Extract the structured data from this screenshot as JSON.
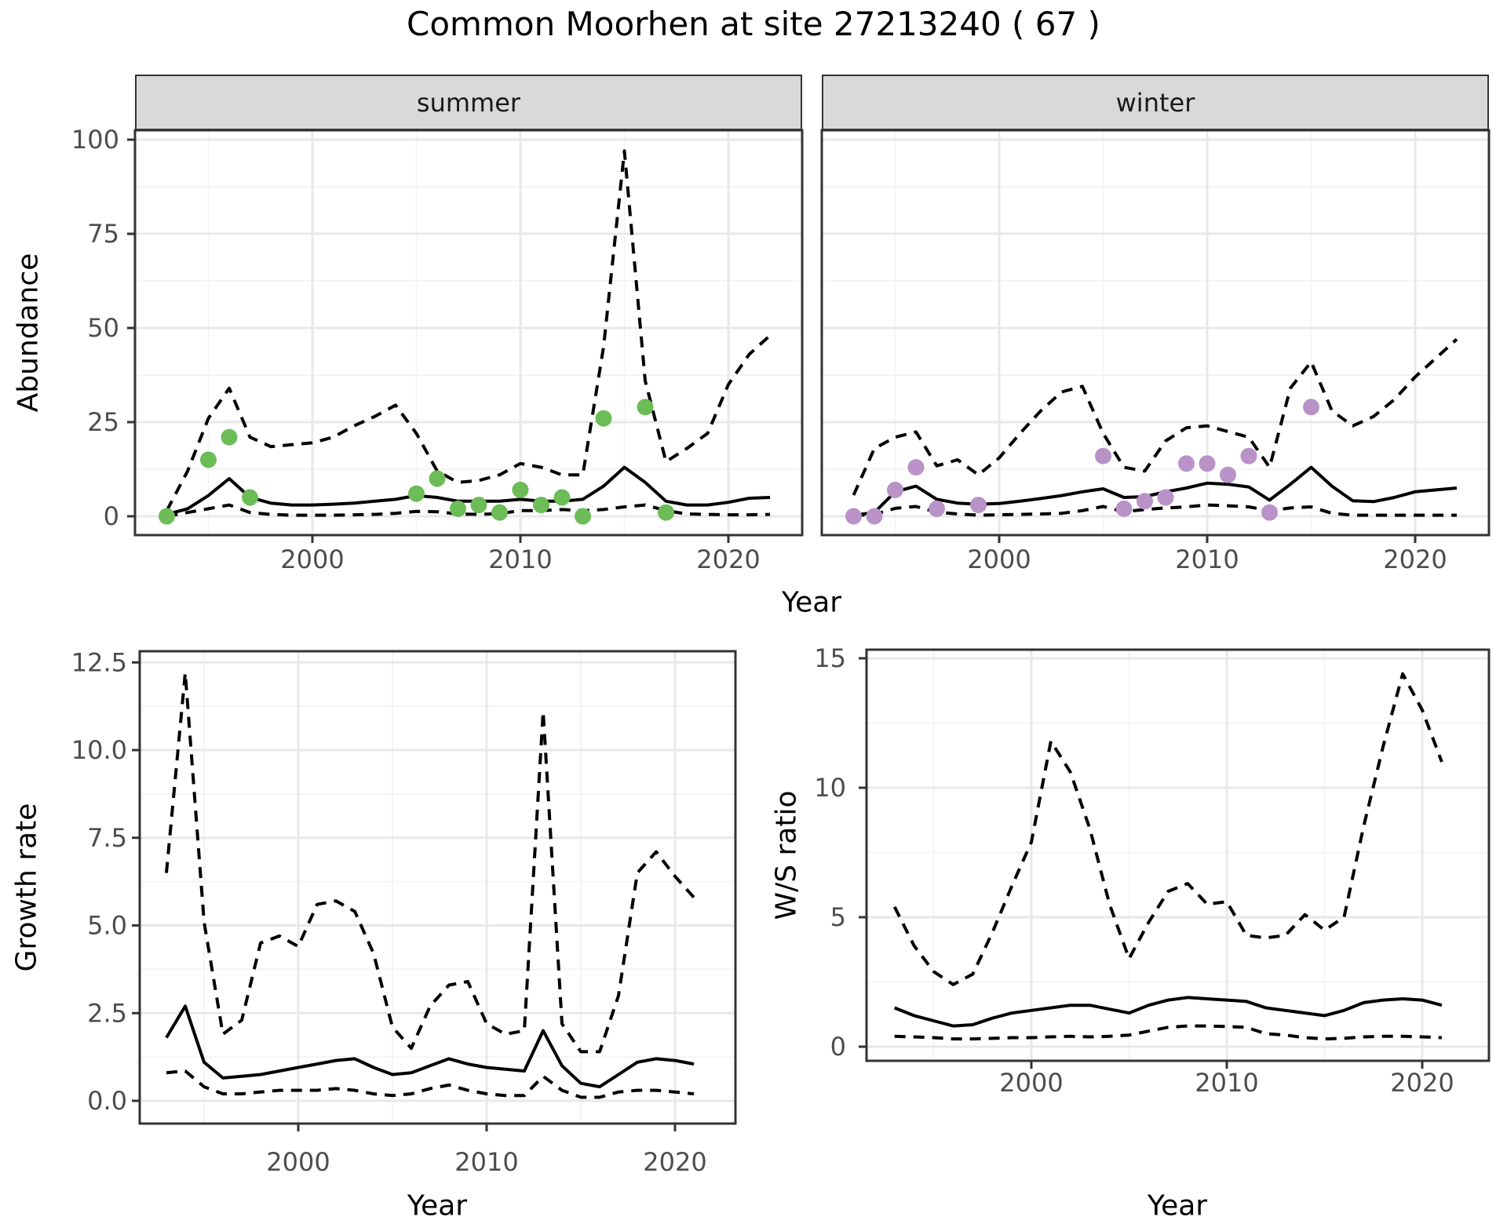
{
  "title": "Common Moorhen at site 27213240 ( 67 )",
  "colors": {
    "summer_point": "#6cbc58",
    "winter_point": "#b993c7",
    "line": "#000000",
    "strip_bg": "#d9d9d9",
    "grid_major": "#e8e8e8",
    "grid_minor": "#f4f4f4",
    "tick_text": "#4d4d4d",
    "panel_border": "#333333",
    "background": "#ffffff"
  },
  "chart_data": [
    {
      "id": "abundance-summer",
      "type": "line",
      "facet_label": "summer",
      "xlabel": "Year",
      "ylabel": "Abundance",
      "xlim": [
        1991.5,
        2023.5
      ],
      "ylim": [
        -5,
        102.5
      ],
      "grid": true,
      "legend_position": "none",
      "xticks": [
        {
          "v": 2000,
          "label": "2000"
        },
        {
          "v": 2010,
          "label": "2010"
        },
        {
          "v": 2020,
          "label": "2020"
        }
      ],
      "xminor": [
        1995,
        2005,
        2015
      ],
      "yticks": [
        {
          "v": 0,
          "label": "0"
        },
        {
          "v": 25,
          "label": "25"
        },
        {
          "v": 50,
          "label": "50"
        },
        {
          "v": 75,
          "label": "75"
        },
        {
          "v": 100,
          "label": "100"
        }
      ],
      "yminor": [
        12.5,
        37.5,
        62.5,
        87.5
      ],
      "x": [
        1993,
        1994,
        1995,
        1996,
        1997,
        1998,
        1999,
        2000,
        2001,
        2002,
        2003,
        2004,
        2005,
        2006,
        2007,
        2008,
        2009,
        2010,
        2011,
        2012,
        2013,
        2014,
        2015,
        2016,
        2017,
        2018,
        2019,
        2020,
        2021,
        2022
      ],
      "series": [
        {
          "name": "median",
          "style": "solid",
          "values": [
            0.5,
            2,
            5.5,
            10,
            5,
            3.5,
            3,
            3,
            3.2,
            3.5,
            4,
            4.5,
            5.5,
            5,
            4,
            4,
            4,
            4.5,
            4,
            4,
            4.5,
            8,
            13,
            9,
            4,
            3,
            3,
            3.7,
            4.8,
            5
          ]
        },
        {
          "name": "lower_ci",
          "style": "dashed",
          "values": [
            0,
            1,
            2,
            3,
            1,
            0.5,
            0.3,
            0.3,
            0.3,
            0.4,
            0.5,
            0.8,
            1.3,
            1.2,
            0.6,
            0.5,
            0.7,
            1.5,
            1.5,
            1.8,
            1.5,
            1.8,
            2.5,
            3,
            1.5,
            0.6,
            0.5,
            0.4,
            0.4,
            0.5
          ]
        },
        {
          "name": "upper_ci",
          "style": "dashed",
          "values": [
            1.5,
            12,
            26,
            34,
            21,
            18.5,
            19,
            19.5,
            21,
            24,
            26.5,
            29.5,
            22,
            12,
            9,
            9.5,
            11,
            14,
            13,
            11,
            11,
            45,
            97,
            36,
            14.5,
            18,
            22,
            35,
            43,
            48
          ]
        }
      ],
      "points": {
        "color_key": "summer_point",
        "data": [
          [
            1993,
            0
          ],
          [
            1995,
            15
          ],
          [
            1996,
            21
          ],
          [
            1997,
            5
          ],
          [
            2005,
            6
          ],
          [
            2006,
            10
          ],
          [
            2007,
            2
          ],
          [
            2008,
            3
          ],
          [
            2009,
            1
          ],
          [
            2010,
            7
          ],
          [
            2011,
            3
          ],
          [
            2012,
            5
          ],
          [
            2013,
            0
          ],
          [
            2014,
            26
          ],
          [
            2016,
            29
          ],
          [
            2017,
            1
          ]
        ]
      }
    },
    {
      "id": "abundance-winter",
      "type": "line",
      "facet_label": "winter",
      "xlabel": "Year",
      "ylabel": "Abundance",
      "xlim": [
        1991.5,
        2023.5
      ],
      "ylim": [
        -5,
        102.5
      ],
      "grid": true,
      "legend_position": "none",
      "xticks": [
        {
          "v": 2000,
          "label": "2000"
        },
        {
          "v": 2010,
          "label": "2010"
        },
        {
          "v": 2020,
          "label": "2020"
        }
      ],
      "xminor": [
        1995,
        2005,
        2015
      ],
      "yticks": [
        {
          "v": 0,
          "label": ""
        },
        {
          "v": 25,
          "label": ""
        },
        {
          "v": 50,
          "label": ""
        },
        {
          "v": 75,
          "label": ""
        },
        {
          "v": 100,
          "label": ""
        }
      ],
      "yminor": [
        12.5,
        37.5,
        62.5,
        87.5
      ],
      "x": [
        1993,
        1994,
        1995,
        1996,
        1997,
        1998,
        1999,
        2000,
        2001,
        2002,
        2003,
        2004,
        2005,
        2006,
        2007,
        2008,
        2009,
        2010,
        2011,
        2012,
        2013,
        2014,
        2015,
        2016,
        2017,
        2018,
        2019,
        2020,
        2021,
        2022
      ],
      "series": [
        {
          "name": "median",
          "style": "solid",
          "values": [
            0.3,
            1,
            6.5,
            8,
            4.5,
            3.5,
            3.2,
            3.4,
            4,
            4.7,
            5.5,
            6.5,
            7.3,
            5,
            5.2,
            6.5,
            7.5,
            8.8,
            8.5,
            7.8,
            4.3,
            8.5,
            13,
            8,
            4.1,
            3.9,
            5,
            6.5,
            7,
            7.5
          ]
        },
        {
          "name": "lower_ci",
          "style": "dashed",
          "values": [
            0.2,
            0.5,
            2.1,
            2.6,
            1.1,
            0.6,
            0.3,
            0.4,
            0.5,
            0.6,
            0.8,
            1.5,
            2.6,
            1.2,
            1.8,
            2.2,
            2.5,
            3,
            2.8,
            2.5,
            1.5,
            2.2,
            2.5,
            0.8,
            0.3,
            0.3,
            0.3,
            0.3,
            0.3,
            0.3
          ]
        },
        {
          "name": "upper_ci",
          "style": "dashed",
          "values": [
            5.6,
            18,
            21,
            22.4,
            13.4,
            15,
            11,
            15.5,
            22,
            28,
            33,
            34.5,
            22,
            13,
            12,
            20,
            23.5,
            24,
            22.5,
            21,
            13,
            34,
            41,
            28,
            24,
            26.5,
            31,
            37,
            42,
            47
          ]
        }
      ],
      "points": {
        "color_key": "winter_point",
        "data": [
          [
            1993,
            0
          ],
          [
            1994,
            0
          ],
          [
            1995,
            7
          ],
          [
            1996,
            13
          ],
          [
            1997,
            2
          ],
          [
            1999,
            3
          ],
          [
            2005,
            16
          ],
          [
            2006,
            2
          ],
          [
            2007,
            4
          ],
          [
            2008,
            5
          ],
          [
            2009,
            14
          ],
          [
            2010,
            14
          ],
          [
            2011,
            11
          ],
          [
            2012,
            16
          ],
          [
            2013,
            1
          ],
          [
            2015,
            29
          ]
        ]
      }
    },
    {
      "id": "growth-rate",
      "type": "line",
      "facet_label": "",
      "xlabel": "Year",
      "ylabel": "Growth rate",
      "xlim": [
        1991.6,
        2023.2
      ],
      "ylim": [
        -0.6,
        12.8
      ],
      "grid": true,
      "legend_position": "none",
      "xticks": [
        {
          "v": 2000,
          "label": "2000"
        },
        {
          "v": 2010,
          "label": "2010"
        },
        {
          "v": 2020,
          "label": "2020"
        }
      ],
      "xminor": [
        1995,
        2005,
        2015
      ],
      "yticks": [
        {
          "v": 0,
          "label": "0.0"
        },
        {
          "v": 2.5,
          "label": "2.5"
        },
        {
          "v": 5,
          "label": "5.0"
        },
        {
          "v": 7.5,
          "label": "7.5"
        },
        {
          "v": 10,
          "label": "10.0"
        },
        {
          "v": 12.5,
          "label": "12.5"
        }
      ],
      "yminor": [
        1.25,
        3.75,
        6.25,
        8.75,
        11.25
      ],
      "x": [
        1993,
        1994,
        1995,
        1996,
        1997,
        1998,
        1999,
        2000,
        2001,
        2002,
        2003,
        2004,
        2005,
        2006,
        2007,
        2008,
        2009,
        2010,
        2011,
        2012,
        2013,
        2014,
        2015,
        2016,
        2017,
        2018,
        2019,
        2020,
        2021
      ],
      "series": [
        {
          "name": "median",
          "style": "solid",
          "values": [
            1.8,
            2.7,
            1.1,
            0.65,
            0.7,
            0.75,
            0.85,
            0.95,
            1.05,
            1.15,
            1.2,
            0.95,
            0.75,
            0.8,
            1.0,
            1.2,
            1.05,
            0.95,
            0.9,
            0.85,
            2.0,
            1.0,
            0.5,
            0.4,
            0.75,
            1.1,
            1.2,
            1.15,
            1.05
          ]
        },
        {
          "name": "lower_ci",
          "style": "dashed",
          "values": [
            0.8,
            0.85,
            0.4,
            0.2,
            0.2,
            0.25,
            0.3,
            0.3,
            0.3,
            0.35,
            0.3,
            0.2,
            0.15,
            0.2,
            0.35,
            0.45,
            0.3,
            0.2,
            0.15,
            0.15,
            0.7,
            0.3,
            0.1,
            0.1,
            0.25,
            0.3,
            0.3,
            0.25,
            0.2
          ]
        },
        {
          "name": "upper_ci",
          "style": "dashed",
          "values": [
            6.5,
            12.2,
            5.1,
            1.9,
            2.3,
            4.5,
            4.7,
            4.4,
            5.6,
            5.7,
            5.4,
            4.2,
            2.1,
            1.5,
            2.7,
            3.3,
            3.4,
            2.2,
            1.9,
            2.0,
            11.1,
            2.2,
            1.4,
            1.4,
            3.0,
            6.5,
            7.1,
            6.4,
            5.8
          ]
        }
      ],
      "points": null
    },
    {
      "id": "ws-ratio",
      "type": "line",
      "facet_label": "",
      "xlabel": "Year",
      "ylabel": "W/S ratio",
      "xlim": [
        1991.6,
        2023.4
      ],
      "ylim": [
        -0.6,
        15.3
      ],
      "grid": true,
      "legend_position": "none",
      "xticks": [
        {
          "v": 2000,
          "label": "2000"
        },
        {
          "v": 2010,
          "label": "2010"
        },
        {
          "v": 2020,
          "label": "2020"
        }
      ],
      "xminor": [
        1995,
        2005,
        2015
      ],
      "yticks": [
        {
          "v": 0,
          "label": "0"
        },
        {
          "v": 5,
          "label": "5"
        },
        {
          "v": 10,
          "label": "10"
        },
        {
          "v": 15,
          "label": "15"
        }
      ],
      "yminor": [
        2.5,
        7.5,
        12.5
      ],
      "x": [
        1993,
        1994,
        1995,
        1996,
        1997,
        1998,
        1999,
        2000,
        2001,
        2002,
        2003,
        2004,
        2005,
        2006,
        2007,
        2008,
        2009,
        2010,
        2011,
        2012,
        2013,
        2014,
        2015,
        2016,
        2017,
        2018,
        2019,
        2020,
        2021
      ],
      "series": [
        {
          "name": "median",
          "style": "solid",
          "values": [
            1.5,
            1.2,
            1.0,
            0.8,
            0.85,
            1.1,
            1.3,
            1.4,
            1.5,
            1.6,
            1.6,
            1.45,
            1.3,
            1.6,
            1.8,
            1.9,
            1.85,
            1.8,
            1.75,
            1.5,
            1.4,
            1.3,
            1.2,
            1.4,
            1.7,
            1.8,
            1.85,
            1.8,
            1.6
          ]
        },
        {
          "name": "lower_ci",
          "style": "dashed",
          "values": [
            0.4,
            0.38,
            0.35,
            0.3,
            0.3,
            0.32,
            0.35,
            0.35,
            0.38,
            0.4,
            0.38,
            0.4,
            0.45,
            0.6,
            0.75,
            0.8,
            0.8,
            0.78,
            0.75,
            0.5,
            0.45,
            0.35,
            0.3,
            0.32,
            0.38,
            0.4,
            0.4,
            0.38,
            0.35
          ]
        },
        {
          "name": "upper_ci",
          "style": "dashed",
          "values": [
            5.4,
            3.9,
            2.9,
            2.4,
            2.8,
            4.4,
            6.2,
            7.9,
            11.8,
            10.6,
            8.4,
            5.5,
            3.4,
            4.8,
            6.0,
            6.3,
            5.5,
            5.6,
            4.3,
            4.2,
            4.3,
            5.1,
            4.5,
            5.0,
            8.5,
            11.6,
            14.4,
            13.0,
            11.0
          ]
        }
      ],
      "points": null
    }
  ]
}
